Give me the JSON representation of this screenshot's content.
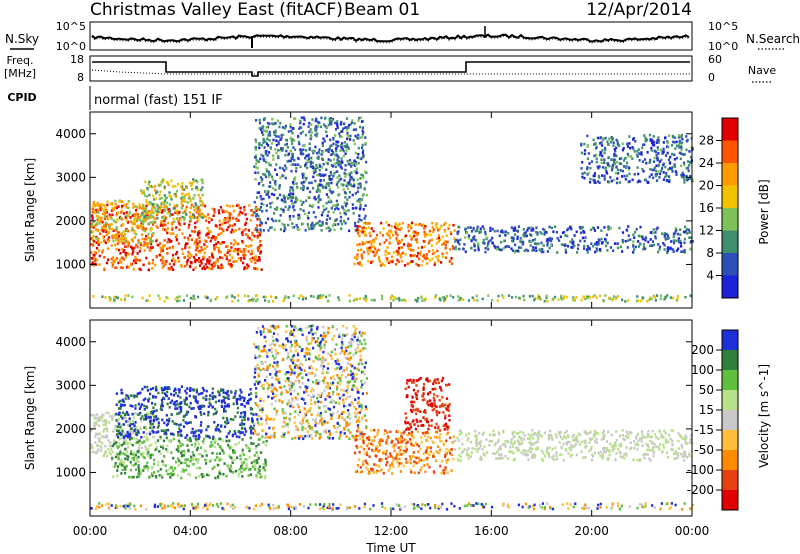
{
  "header": {
    "title": "Christmas Valley East (fitACF)",
    "beam": "Beam 01",
    "date": "12/Apr/2014"
  },
  "status_panels": {
    "nsky_label": "N.Sky",
    "nsearch_label": "N.Search",
    "noise_ticks": [
      "10^5",
      "10^0"
    ],
    "freq_label_1": "Freq.",
    "freq_label_2": "[MHz]",
    "freq_ticks": [
      "18",
      "8"
    ],
    "nave_label": "Nave",
    "nave_ticks": [
      "60",
      "0"
    ],
    "cpid_label": "CPID",
    "cpid_value": "normal (fast) 151 IF"
  },
  "x_axis": {
    "label": "Time UT",
    "ticks": [
      "00:00",
      "04:00",
      "08:00",
      "12:00",
      "16:00",
      "20:00",
      "00:00"
    ]
  },
  "chart_data": [
    {
      "type": "heatmap",
      "quantity": "Power",
      "ylabel": "Slant Range [km]",
      "colorbar_label": "Power [dB]",
      "colorbar_ticks": [
        "28",
        "24",
        "20",
        "16",
        "12",
        "8",
        "4"
      ],
      "ylim": [
        0,
        4500
      ],
      "yticks": [
        "4000",
        "3000",
        "2000",
        "1000"
      ],
      "xlim_hours": [
        0,
        24
      ],
      "colors": [
        "#e10000",
        "#ff5500",
        "#ff9a00",
        "#f2c200",
        "#7dc35a",
        "#3e8f6e",
        "#2c4fb8",
        "#1c22d8"
      ],
      "regions": [
        {
          "t0": 0.0,
          "t1": 6.8,
          "r0": 900,
          "r1": 2400,
          "level": 0.8
        },
        {
          "t0": 0.0,
          "t1": 2.5,
          "r0": 1500,
          "r1": 2500,
          "level": 0.5
        },
        {
          "t0": 2.0,
          "t1": 4.5,
          "r0": 2000,
          "r1": 3000,
          "level": 0.4
        },
        {
          "t0": 6.5,
          "t1": 11.0,
          "r0": 1800,
          "r1": 4400,
          "level": 0.15
        },
        {
          "t0": 10.5,
          "t1": 14.5,
          "r0": 1000,
          "r1": 2000,
          "level": 0.7
        },
        {
          "t0": 14.5,
          "t1": 24.0,
          "r0": 1300,
          "r1": 1900,
          "level": 0.1
        },
        {
          "t0": 19.5,
          "t1": 24.0,
          "r0": 2900,
          "r1": 4000,
          "level": 0.1
        },
        {
          "t0": 0.0,
          "t1": 24.0,
          "r0": 180,
          "r1": 320,
          "level": 0.35
        }
      ]
    },
    {
      "type": "heatmap",
      "quantity": "Velocity",
      "ylabel": "Slant Range [km]",
      "colorbar_label": "Velocity [m s^-1]",
      "colorbar_ticks": [
        "200",
        "100",
        "50",
        "15",
        "-15",
        "-50",
        "-100",
        "-200"
      ],
      "ylim": [
        0,
        4500
      ],
      "yticks": [
        "4000",
        "3000",
        "2000",
        "1000"
      ],
      "xlim_hours": [
        0,
        24
      ],
      "colors": [
        "#1f2fd8",
        "#2e7f3c",
        "#5fbf3f",
        "#b8e08a",
        "#c8c8c8",
        "#ffbf3a",
        "#ff8c00",
        "#e84010",
        "#e00000"
      ],
      "regions": [
        {
          "t0": 0.0,
          "t1": 2.5,
          "r0": 1400,
          "r1": 2400,
          "level": "grey"
        },
        {
          "t0": 0.8,
          "t1": 7.0,
          "r0": 900,
          "r1": 1800,
          "level": "green"
        },
        {
          "t0": 1.0,
          "t1": 6.5,
          "r0": 1800,
          "r1": 3000,
          "level": "blue"
        },
        {
          "t0": 6.5,
          "t1": 11.0,
          "r0": 1800,
          "r1": 4400,
          "level": "mixed"
        },
        {
          "t0": 10.5,
          "t1": 14.5,
          "r0": 1000,
          "r1": 2000,
          "level": "orange"
        },
        {
          "t0": 12.5,
          "t1": 14.3,
          "r0": 2000,
          "r1": 3200,
          "level": "red"
        },
        {
          "t0": 14.5,
          "t1": 24.0,
          "r0": 1300,
          "r1": 2000,
          "level": "grey"
        },
        {
          "t0": 0.0,
          "t1": 24.0,
          "r0": 180,
          "r1": 320,
          "level": "mixed"
        }
      ]
    }
  ]
}
